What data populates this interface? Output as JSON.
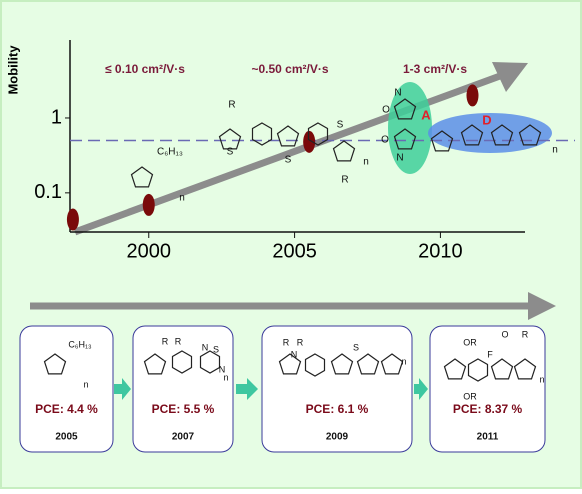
{
  "chart_data": {
    "type": "scatter",
    "y_label": "Mobility",
    "x": [
      1997.4,
      2000,
      2005.5,
      2011.1
    ],
    "values": [
      0.044,
      0.069,
      0.48,
      2.0
    ],
    "color": "#7a0a0a",
    "xlim": [
      1997.3,
      2012.9
    ],
    "ylim": [
      0.03,
      11
    ],
    "xticks": [
      2000,
      2005,
      2010
    ],
    "yticks": [
      0.1,
      1
    ],
    "log_y": true,
    "hline": 0.5,
    "annotations": [
      "≤ 0.10 cm²/V·s",
      "~0.50 cm²/V·s",
      "1-3 cm²/V·s"
    ],
    "structures": [
      {
        "labels": [
          "C₆H₁₃",
          "n"
        ]
      },
      {
        "labels": [
          "R",
          "S",
          "S",
          "S",
          "R",
          "n"
        ]
      },
      {
        "labels": [
          "N",
          "N",
          "O",
          "O",
          "A",
          "D",
          "n"
        ]
      }
    ]
  },
  "pce_panel": {
    "items": [
      {
        "pce": "PCE: 4.4 %",
        "year": "2005",
        "labels": [
          "C₆H₁₃",
          "n"
        ]
      },
      {
        "pce": "PCE:  5.5 %",
        "year": "2007",
        "labels": [
          "R",
          "R",
          "N",
          "S",
          "N",
          "n"
        ]
      },
      {
        "pce": "PCE:  6.1 %",
        "year": "2009",
        "labels": [
          "R",
          "R",
          "N",
          "S",
          "n"
        ]
      },
      {
        "pce": "PCE:  8.37 %",
        "year": "2011",
        "labels": [
          "OR",
          "OR",
          "O",
          "R",
          "F",
          "n"
        ]
      }
    ]
  }
}
